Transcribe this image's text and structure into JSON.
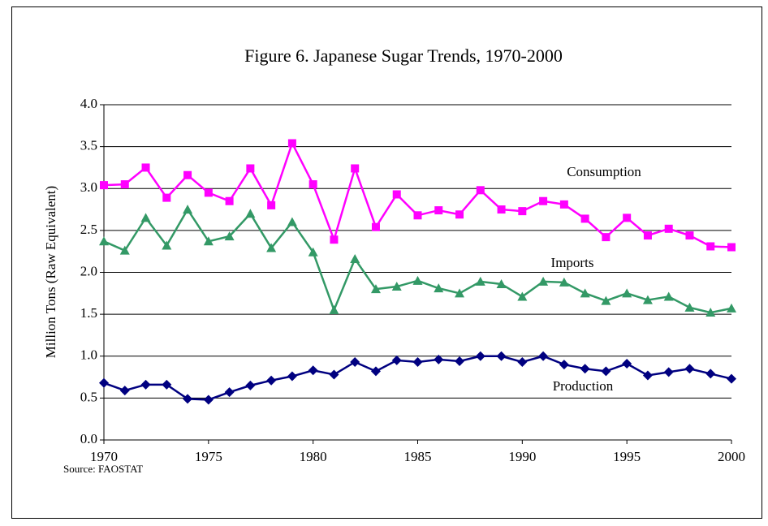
{
  "chart_data": {
    "type": "line",
    "title": "Figure 6. Japanese Sugar Trends, 1970-2000",
    "y_label": "Million Tons (Raw Equivalent)",
    "source": "Source: FAOSTAT",
    "x": [
      1970,
      1971,
      1972,
      1973,
      1974,
      1975,
      1976,
      1977,
      1978,
      1979,
      1980,
      1981,
      1982,
      1983,
      1984,
      1985,
      1986,
      1987,
      1988,
      1989,
      1990,
      1991,
      1992,
      1993,
      1994,
      1995,
      1996,
      1997,
      1998,
      1999,
      2000
    ],
    "xlim": [
      1970,
      2000
    ],
    "xticks": [
      1970,
      1975,
      1980,
      1985,
      1990,
      1995,
      2000
    ],
    "ylim": [
      0,
      4
    ],
    "yticks": [
      {
        "value": 0,
        "label": "0.0"
      },
      {
        "value": 0.5,
        "label": "0.5"
      },
      {
        "value": 1,
        "label": "1.0"
      },
      {
        "value": 1.5,
        "label": "1.5"
      },
      {
        "value": 2,
        "label": "2.0"
      },
      {
        "value": 2.5,
        "label": "2.5"
      },
      {
        "value": 3,
        "label": "3.0"
      },
      {
        "value": 3.5,
        "label": "3.5"
      },
      {
        "value": 4,
        "label": "4.0"
      }
    ],
    "grid": true,
    "series": [
      {
        "name": "Consumption",
        "color": "#ff00ff",
        "marker": "square",
        "values": [
          3.04,
          3.05,
          3.25,
          2.89,
          3.16,
          2.95,
          2.85,
          3.24,
          2.8,
          3.54,
          3.05,
          2.39,
          3.24,
          2.54,
          2.93,
          2.68,
          2.74,
          2.69,
          2.98,
          2.75,
          2.73,
          2.85,
          2.81,
          2.64,
          2.42,
          2.65,
          2.44,
          2.52,
          2.44,
          2.31,
          2.3
        ]
      },
      {
        "name": "Imports",
        "color": "#339966",
        "marker": "triangle",
        "values": [
          2.37,
          2.26,
          2.65,
          2.32,
          2.75,
          2.37,
          2.43,
          2.7,
          2.29,
          2.6,
          2.24,
          1.55,
          2.16,
          1.8,
          1.83,
          1.9,
          1.81,
          1.75,
          1.89,
          1.86,
          1.71,
          1.89,
          1.88,
          1.75,
          1.66,
          1.75,
          1.67,
          1.71,
          1.58,
          1.52,
          1.57
        ]
      },
      {
        "name": "Production",
        "color": "#000080",
        "marker": "diamond",
        "values": [
          0.68,
          0.59,
          0.66,
          0.66,
          0.49,
          0.48,
          0.57,
          0.65,
          0.71,
          0.76,
          0.83,
          0.78,
          0.93,
          0.82,
          0.95,
          0.93,
          0.96,
          0.94,
          1.0,
          1.0,
          0.93,
          1.0,
          0.9,
          0.85,
          0.82,
          0.91,
          0.77,
          0.81,
          0.85,
          0.79,
          0.73
        ]
      }
    ]
  }
}
